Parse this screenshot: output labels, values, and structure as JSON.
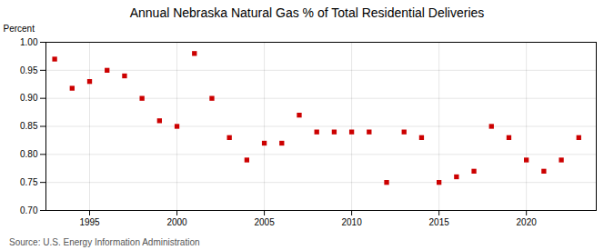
{
  "chart_data": {
    "type": "scatter",
    "title": "Annual Nebraska Natural Gas % of Total Residential Deliveries",
    "ylabel": "Percent",
    "annotation": "Source: U.S. Energy Information Administration",
    "x": [
      1993,
      1994,
      1995,
      1996,
      1997,
      1998,
      1999,
      2000,
      2001,
      2002,
      2003,
      2004,
      2005,
      2006,
      2007,
      2008,
      2009,
      2010,
      2011,
      2012,
      2013,
      2014,
      2015,
      2016,
      2017,
      2018,
      2019,
      2020,
      2021,
      2022,
      2023
    ],
    "values": [
      0.97,
      0.918,
      0.93,
      0.95,
      0.94,
      0.9,
      0.86,
      0.85,
      0.98,
      0.9,
      0.83,
      0.79,
      0.82,
      0.82,
      0.87,
      0.84,
      0.84,
      0.84,
      0.84,
      0.75,
      0.84,
      0.83,
      0.75,
      0.76,
      0.77,
      0.85,
      0.83,
      0.79,
      0.77,
      0.79,
      0.83
    ],
    "color": "#cc0000",
    "marker": "square",
    "xlim": [
      1992.5,
      2024
    ],
    "xticks": [
      1995,
      2000,
      2005,
      2010,
      2015,
      2020
    ],
    "ylim": [
      0.7,
      1.0
    ],
    "yticks": [
      {
        "value": 0.7,
        "label": "0.70"
      },
      0.75,
      {
        "value": 0.8,
        "label": "0.80"
      },
      0.85,
      {
        "value": 0.9,
        "label": "0.90"
      },
      0.95,
      {
        "value": 1.0,
        "label": "1.00"
      }
    ],
    "grid": true
  }
}
